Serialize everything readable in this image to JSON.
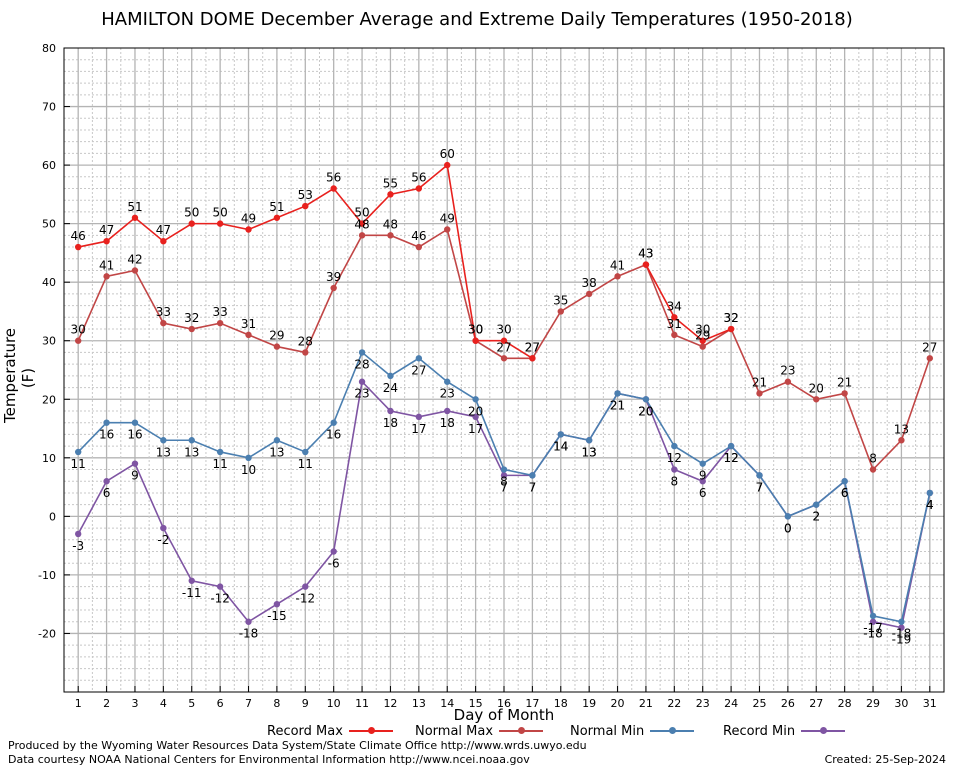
{
  "chart_data": {
    "type": "line",
    "title": "HAMILTON DOME December Average and Extreme Daily Temperatures (1950-2018)",
    "xlabel": "Day of Month",
    "ylabel": "Temperature (F)",
    "x": [
      1,
      2,
      3,
      4,
      5,
      6,
      7,
      8,
      9,
      10,
      11,
      12,
      13,
      14,
      15,
      16,
      17,
      18,
      19,
      20,
      21,
      22,
      23,
      24,
      25,
      26,
      27,
      28,
      29,
      30,
      31
    ],
    "xlim": [
      0.5,
      31.5
    ],
    "ylim": [
      -30,
      80
    ],
    "yticks": [
      -20,
      -10,
      0,
      10,
      20,
      30,
      40,
      50,
      60,
      70,
      80
    ],
    "grid": true,
    "legend_position": "bottom",
    "series": [
      {
        "name": "Record Max",
        "color": "#e8211e",
        "values": [
          46,
          47,
          51,
          47,
          50,
          50,
          49,
          51,
          53,
          56,
          50,
          55,
          56,
          60,
          30,
          30,
          27,
          null,
          null,
          null,
          43,
          34,
          30,
          32,
          null,
          null,
          null,
          null,
          null,
          null,
          null
        ]
      },
      {
        "name": "Normal Max",
        "color": "#c14646",
        "values": [
          30,
          41,
          42,
          33,
          32,
          33,
          31,
          29,
          28,
          39,
          48,
          48,
          46,
          49,
          30,
          27,
          27,
          35,
          38,
          41,
          43,
          31,
          29,
          32,
          21,
          23,
          20,
          21,
          8,
          13,
          27
        ]
      },
      {
        "name": "Normal Min",
        "color": "#4b7fb0",
        "values": [
          11,
          16,
          16,
          13,
          13,
          11,
          10,
          13,
          11,
          16,
          28,
          24,
          27,
          23,
          20,
          8,
          7,
          14,
          13,
          21,
          20,
          12,
          9,
          12,
          7,
          0,
          2,
          6,
          -17,
          -18,
          4
        ]
      },
      {
        "name": "Record Min",
        "color": "#7f55a3",
        "values": [
          -3,
          6,
          9,
          -2,
          -11,
          -12,
          -18,
          -15,
          -12,
          -6,
          23,
          18,
          17,
          18,
          17,
          7,
          7,
          14,
          13,
          21,
          20,
          8,
          6,
          12,
          7,
          0,
          2,
          6,
          -18,
          -19,
          4
        ]
      }
    ]
  },
  "footer": {
    "line1": "Produced by the Wyoming Water Resources Data System/State Climate Office http://www.wrds.uwyo.edu",
    "line2": "Data courtesy NOAA National Centers for Environmental Information http://www.ncei.noaa.gov",
    "created": "Created:  25-Sep-2024"
  }
}
